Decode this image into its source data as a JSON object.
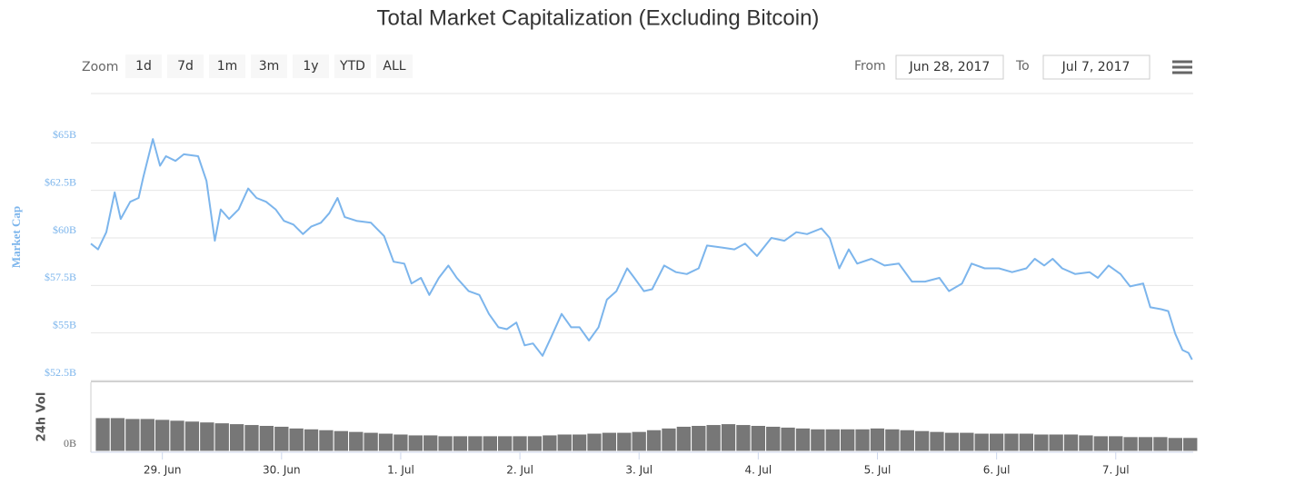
{
  "zoom": {
    "label": "Zoom",
    "buttons": [
      "1d",
      "7d",
      "1m",
      "3m",
      "1y",
      "YTD",
      "ALL"
    ]
  },
  "range": {
    "from_label": "From",
    "from": "Jun 28, 2017",
    "to_label": "To",
    "to": "Jul 7, 2017"
  },
  "chart_data": [
    {
      "type": "line",
      "title": "Total Market Capitalization (Excluding Bitcoin)",
      "ylabel": "Market Cap",
      "color": "#7cb5ec",
      "xlim": [
        0.4,
        9.65
      ],
      "ylim": [
        52.5,
        67.5
      ],
      "yticks": [
        {
          "value": 52.5,
          "label": "$52.5B"
        },
        {
          "value": 55,
          "label": "$55B"
        },
        {
          "value": 57.5,
          "label": "$57.5B"
        },
        {
          "value": 60,
          "label": "$60B"
        },
        {
          "value": 62.5,
          "label": "$62.5B"
        },
        {
          "value": 65,
          "label": "$65B"
        }
      ],
      "grid": true,
      "x": [
        0.4,
        0.46,
        0.53,
        0.6,
        0.65,
        0.73,
        0.8,
        0.84,
        0.92,
        0.98,
        1.03,
        1.11,
        1.18,
        1.3,
        1.37,
        1.44,
        1.49,
        1.56,
        1.64,
        1.72,
        1.79,
        1.87,
        1.95,
        2.02,
        2.1,
        2.18,
        2.25,
        2.33,
        2.4,
        2.47,
        2.53,
        2.63,
        2.75,
        2.86,
        2.94,
        3.03,
        3.09,
        3.17,
        3.24,
        3.32,
        3.4,
        3.47,
        3.57,
        3.66,
        3.74,
        3.82,
        3.89,
        3.97,
        4.04,
        4.11,
        4.19,
        4.26,
        4.35,
        4.43,
        4.5,
        4.58,
        4.66,
        4.73,
        4.81,
        4.9,
        4.96,
        5.04,
        5.11,
        5.21,
        5.31,
        5.4,
        5.5,
        5.57,
        5.69,
        5.8,
        5.89,
        5.99,
        6.11,
        6.22,
        6.32,
        6.41,
        6.53,
        6.6,
        6.68,
        6.76,
        6.83,
        6.95,
        7.06,
        7.18,
        7.29,
        7.4,
        7.52,
        7.6,
        7.71,
        7.79,
        7.9,
        8.02,
        8.13,
        8.25,
        8.32,
        8.4,
        8.47,
        8.55,
        8.66,
        8.78,
        8.85,
        8.94,
        9.04,
        9.12,
        9.23,
        9.29,
        9.38,
        9.44,
        9.5,
        9.56,
        9.61,
        9.64
      ],
      "values": [
        59.7,
        59.4,
        60.3,
        62.4,
        61.0,
        61.9,
        62.1,
        63.2,
        65.2,
        63.8,
        64.3,
        64.05,
        64.4,
        64.3,
        63.0,
        59.85,
        61.5,
        61.0,
        61.5,
        62.6,
        62.1,
        61.9,
        61.5,
        60.9,
        60.7,
        60.2,
        60.6,
        60.8,
        61.3,
        62.1,
        61.1,
        60.9,
        60.8,
        60.1,
        58.75,
        58.65,
        57.6,
        57.9,
        57.0,
        57.9,
        58.55,
        57.9,
        57.2,
        57.0,
        56.0,
        55.3,
        55.2,
        55.55,
        54.35,
        54.45,
        53.8,
        54.75,
        56.0,
        55.3,
        55.3,
        54.6,
        55.3,
        56.75,
        57.2,
        58.4,
        57.9,
        57.2,
        57.3,
        58.55,
        58.2,
        58.1,
        58.4,
        59.6,
        59.5,
        59.4,
        59.7,
        59.05,
        60.0,
        59.85,
        60.3,
        60.2,
        60.5,
        60.0,
        58.4,
        59.4,
        58.65,
        58.9,
        58.55,
        58.65,
        57.7,
        57.7,
        57.9,
        57.2,
        57.6,
        58.65,
        58.4,
        58.4,
        58.2,
        58.4,
        58.9,
        58.55,
        58.9,
        58.4,
        58.1,
        58.2,
        57.9,
        58.55,
        58.1,
        57.45,
        57.6,
        56.35,
        56.25,
        56.15,
        54.95,
        54.1,
        53.95,
        53.6
      ]
    },
    {
      "type": "bar",
      "ylabel": "24h Vol",
      "color": "#777777",
      "xlim": [
        0.4,
        9.65
      ],
      "ylim": [
        0,
        4
      ],
      "yticks": [
        {
          "value": 0,
          "label": "0B"
        }
      ],
      "xticks": [
        {
          "value": 1,
          "label": "29. Jun"
        },
        {
          "value": 2,
          "label": "30. Jun"
        },
        {
          "value": 3,
          "label": "1. Jul"
        },
        {
          "value": 4,
          "label": "2. Jul"
        },
        {
          "value": 5,
          "label": "3. Jul"
        },
        {
          "value": 6,
          "label": "4. Jul"
        },
        {
          "value": 7,
          "label": "5. Jul"
        },
        {
          "value": 8,
          "label": "6. Jul"
        },
        {
          "value": 9,
          "label": "7. Jul"
        }
      ],
      "x": [
        0.5,
        0.625,
        0.75,
        0.875,
        1.0,
        1.125,
        1.25,
        1.375,
        1.5,
        1.625,
        1.75,
        1.875,
        2.0,
        2.125,
        2.25,
        2.375,
        2.5,
        2.625,
        2.75,
        2.875,
        3.0,
        3.125,
        3.25,
        3.375,
        3.5,
        3.625,
        3.75,
        3.875,
        4.0,
        4.125,
        4.25,
        4.375,
        4.5,
        4.625,
        4.75,
        4.875,
        5.0,
        5.125,
        5.25,
        5.375,
        5.5,
        5.625,
        5.75,
        5.875,
        6.0,
        6.125,
        6.25,
        6.375,
        6.5,
        6.625,
        6.75,
        6.875,
        7.0,
        7.125,
        7.25,
        7.375,
        7.5,
        7.625,
        7.75,
        7.875,
        8.0,
        8.125,
        8.25,
        8.375,
        8.5,
        8.625,
        8.75,
        8.875,
        9.0,
        9.125,
        9.25,
        9.375,
        9.5,
        9.625
      ],
      "values": [
        1.95,
        1.95,
        1.9,
        1.9,
        1.85,
        1.8,
        1.75,
        1.7,
        1.65,
        1.6,
        1.55,
        1.5,
        1.45,
        1.35,
        1.3,
        1.25,
        1.2,
        1.15,
        1.1,
        1.05,
        1.0,
        0.95,
        0.95,
        0.9,
        0.9,
        0.9,
        0.9,
        0.9,
        0.9,
        0.9,
        0.95,
        1.0,
        1.0,
        1.05,
        1.1,
        1.1,
        1.15,
        1.25,
        1.35,
        1.45,
        1.5,
        1.55,
        1.6,
        1.55,
        1.5,
        1.45,
        1.4,
        1.35,
        1.3,
        1.3,
        1.3,
        1.3,
        1.35,
        1.3,
        1.25,
        1.2,
        1.15,
        1.1,
        1.1,
        1.05,
        1.05,
        1.05,
        1.05,
        1.0,
        1.0,
        1.0,
        0.95,
        0.9,
        0.9,
        0.85,
        0.85,
        0.85,
        0.8,
        0.8
      ]
    }
  ]
}
